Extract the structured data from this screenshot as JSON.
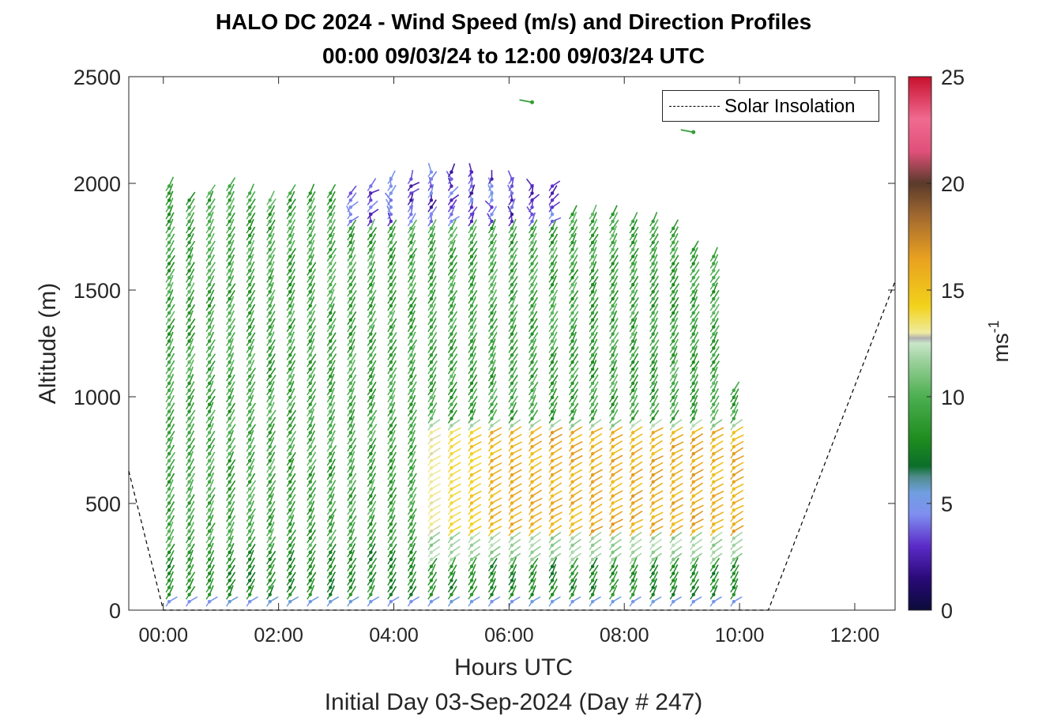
{
  "title": "HALO DC 2024 - Wind Speed (m/s) and Direction Profiles",
  "subtitle": "00:00 09/03/24 to 12:00 09/03/24  UTC",
  "xlabel": "Hours UTC",
  "sublabel": "Initial Day 03-Sep-2024 (Day # 247)",
  "legend_label": "Solar Insolation",
  "chart_data": {
    "type": "scatter",
    "title": "HALO DC 2024 - Wind Speed (m/s) and Direction Profiles",
    "xlabel": "Hours UTC",
    "ylabel": "Altitude (m)",
    "xlim_hours": [
      -0.6,
      12.7
    ],
    "ylim": [
      0,
      2500
    ],
    "x_ticks": [
      "00:00",
      "02:00",
      "04:00",
      "06:00",
      "08:00",
      "10:00",
      "12:00"
    ],
    "x_tick_hours": [
      0,
      2,
      4,
      6,
      8,
      10,
      12
    ],
    "y_ticks": [
      "0",
      "500",
      "1000",
      "1500",
      "2000",
      "2500"
    ],
    "y_tick_values": [
      0,
      500,
      1000,
      1500,
      2000,
      2500
    ],
    "colorbar": {
      "label": "ms-1",
      "label_main": "ms",
      "label_sup": "-1",
      "range": [
        0,
        25
      ],
      "ticks": [
        "0",
        "5",
        "10",
        "15",
        "20",
        "25"
      ],
      "tick_values": [
        0,
        5,
        10,
        15,
        20,
        25
      ]
    },
    "profile_hours": [
      0.1,
      0.45,
      0.8,
      1.15,
      1.5,
      1.85,
      2.2,
      2.55,
      2.9,
      3.25,
      3.6,
      3.95,
      4.3,
      4.65,
      5.0,
      5.35,
      5.7,
      6.05,
      6.4,
      6.75,
      7.1,
      7.45,
      7.8,
      8.15,
      8.5,
      8.85,
      9.2,
      9.55,
      9.9
    ],
    "profile_top_altitude_m": [
      2000,
      1950,
      1960,
      2000,
      1960,
      1950,
      1980,
      1960,
      1970,
      1980,
      2000,
      2020,
      2050,
      2060,
      2060,
      2060,
      2050,
      2040,
      2010,
      1990,
      1870,
      1860,
      1860,
      1850,
      1830,
      1800,
      1700,
      1660,
      1050
    ],
    "low_level_jet": {
      "altitude_m": [
        350,
        850
      ],
      "hours": [
        4.4,
        9.9
      ],
      "speed_ms": [
        13,
        17
      ]
    },
    "solar_insolation": {
      "name": "Solar Insolation",
      "hours": [
        -0.6,
        0.0,
        10.5,
        12.7
      ],
      "relative": [
        0.44,
        0.0,
        0.0,
        1.04
      ]
    },
    "isolated_points": [
      {
        "hour": 6.4,
        "altitude_m": 2380,
        "speed_ms": 9
      },
      {
        "hour": 9.2,
        "altitude_m": 2240,
        "speed_ms": 9
      }
    ]
  }
}
